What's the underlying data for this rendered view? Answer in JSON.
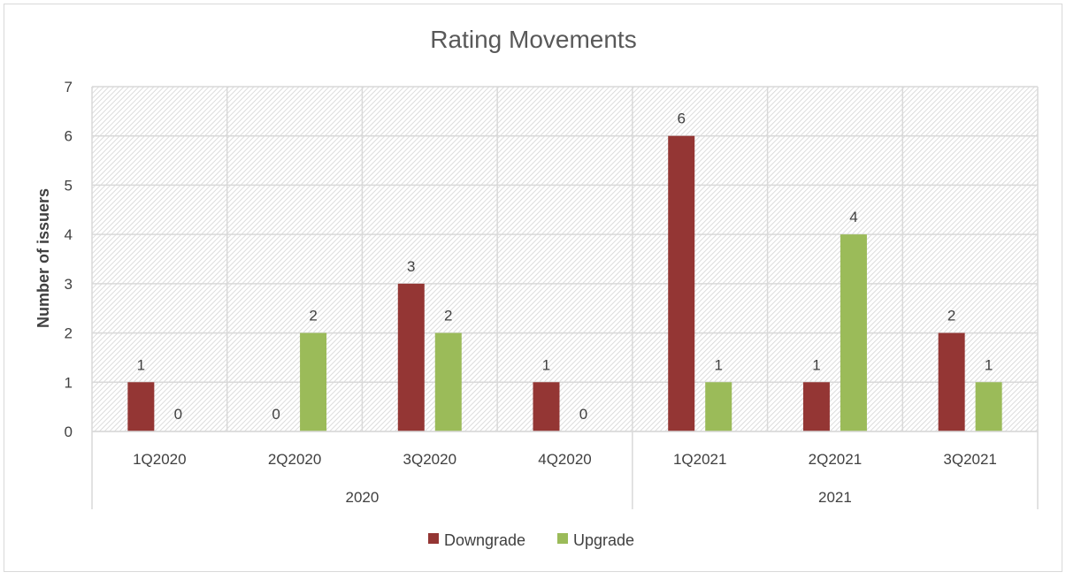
{
  "chart_data": {
    "type": "bar",
    "title": "Rating Movements",
    "ylabel": "Number of issuers",
    "xlabel": "",
    "ylim": [
      0,
      7
    ],
    "yticks": [
      0,
      1,
      2,
      3,
      4,
      5,
      6,
      7
    ],
    "categories": [
      "1Q2020",
      "2Q2020",
      "3Q2020",
      "4Q2020",
      "1Q2021",
      "2Q2021",
      "3Q2021"
    ],
    "groups": [
      {
        "label": "2020",
        "count": 4
      },
      {
        "label": "2021",
        "count": 3
      }
    ],
    "series": [
      {
        "name": "Downgrade",
        "color": "#943634",
        "values": [
          1,
          0,
          3,
          1,
          6,
          1,
          2
        ]
      },
      {
        "name": "Upgrade",
        "color": "#9BBB59",
        "values": [
          0,
          2,
          2,
          0,
          1,
          4,
          1
        ]
      }
    ],
    "grid": true,
    "plot_background": "hatched-light-gray",
    "legend_position": "bottom",
    "data_labels": true
  }
}
